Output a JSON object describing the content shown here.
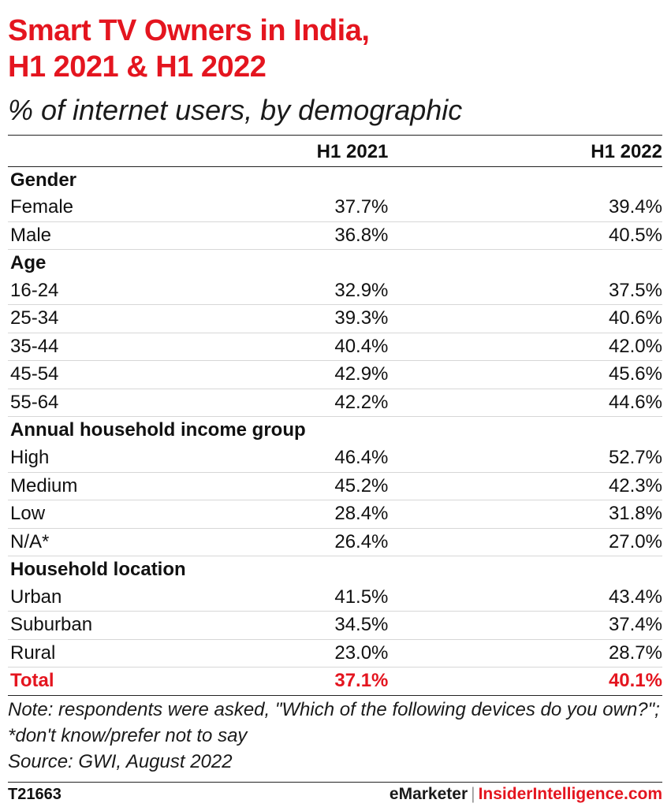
{
  "header": {
    "title_line1": "Smart TV Owners in India,",
    "title_line2": "H1 2021 & H1 2022",
    "subtitle": "% of internet users, by demographic"
  },
  "colors": {
    "accent": "#e4151f",
    "text": "#111111",
    "rule": "#222222",
    "row_rule": "#d7d7d7"
  },
  "chart_data": {
    "type": "table",
    "columns": [
      "",
      "H1 2021",
      "H1 2022"
    ],
    "groups": [
      {
        "name": "Gender",
        "rows": [
          {
            "label": "Female",
            "h1_2021": "37.7%",
            "h1_2022": "39.4%"
          },
          {
            "label": "Male",
            "h1_2021": "36.8%",
            "h1_2022": "40.5%"
          }
        ]
      },
      {
        "name": "Age",
        "rows": [
          {
            "label": "16-24",
            "h1_2021": "32.9%",
            "h1_2022": "37.5%"
          },
          {
            "label": "25-34",
            "h1_2021": "39.3%",
            "h1_2022": "40.6%"
          },
          {
            "label": "35-44",
            "h1_2021": "40.4%",
            "h1_2022": "42.0%"
          },
          {
            "label": "45-54",
            "h1_2021": "42.9%",
            "h1_2022": "45.6%"
          },
          {
            "label": "55-64",
            "h1_2021": "42.2%",
            "h1_2022": "44.6%"
          }
        ]
      },
      {
        "name": "Annual household income group",
        "rows": [
          {
            "label": "High",
            "h1_2021": "46.4%",
            "h1_2022": "52.7%"
          },
          {
            "label": "Medium",
            "h1_2021": "45.2%",
            "h1_2022": "42.3%"
          },
          {
            "label": "Low",
            "h1_2021": "28.4%",
            "h1_2022": "31.8%"
          },
          {
            "label": "N/A*",
            "h1_2021": "26.4%",
            "h1_2022": "27.0%"
          }
        ]
      },
      {
        "name": "Household location",
        "rows": [
          {
            "label": "Urban",
            "h1_2021": "41.5%",
            "h1_2022": "43.4%"
          },
          {
            "label": "Suburban",
            "h1_2021": "34.5%",
            "h1_2022": "37.4%"
          },
          {
            "label": "Rural",
            "h1_2021": "23.0%",
            "h1_2022": "28.7%"
          }
        ]
      }
    ],
    "total": {
      "label": "Total",
      "h1_2021": "37.1%",
      "h1_2022": "40.1%"
    }
  },
  "footer": {
    "note": "Note: respondents were asked, \"Which of the following devices do you own?\"; *don't know/prefer not to say",
    "source": "Source: GWI, August 2022",
    "chart_id": "T21663",
    "brand_emarketer": "eMarketer",
    "brand_separator": "|",
    "brand_insider": "InsiderIntelligence.com"
  }
}
